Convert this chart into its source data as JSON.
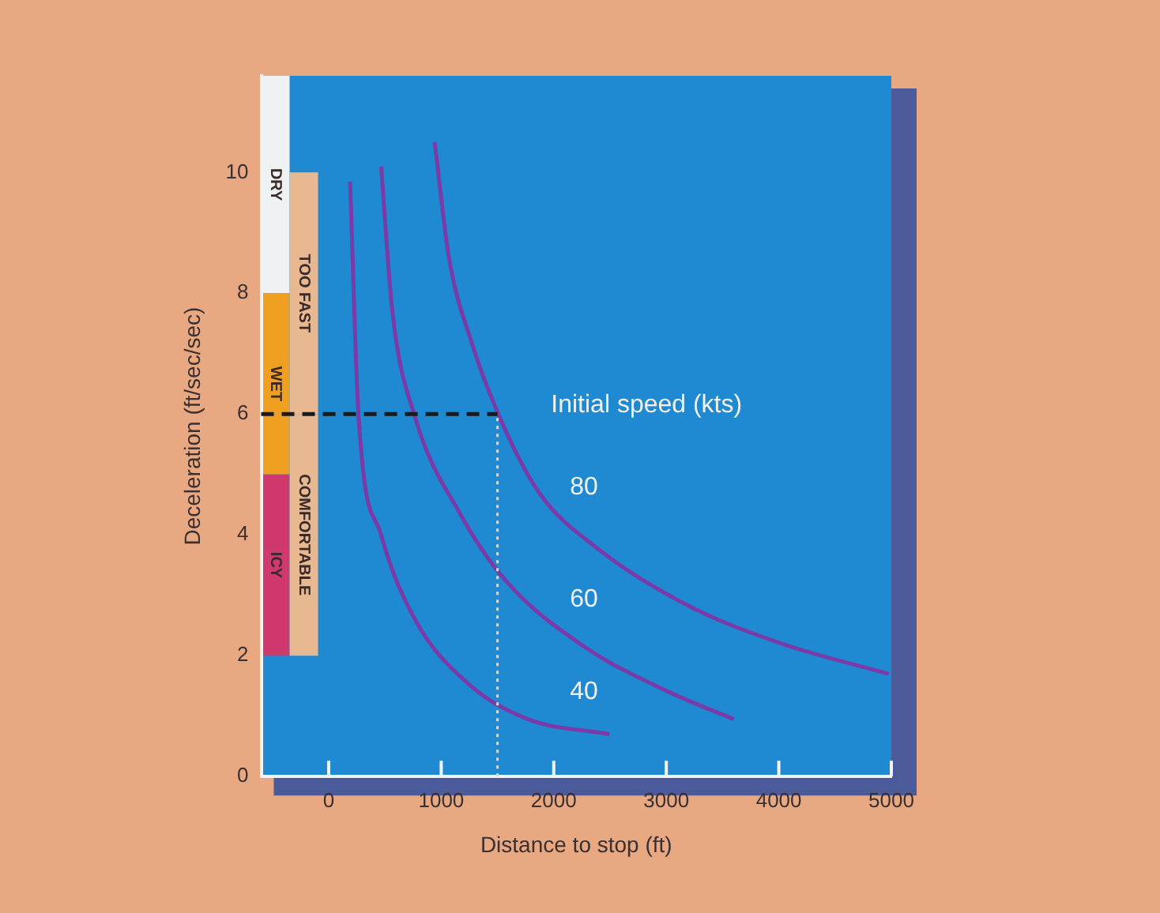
{
  "chart_data": {
    "type": "line",
    "xlabel": "Distance to stop (ft)",
    "ylabel": "Deceleration (ft/sec/sec)",
    "legend_title": "Initial speed (kts)",
    "xlim": [
      -600,
      5000
    ],
    "xticks": [
      0,
      1000,
      2000,
      3000,
      4000,
      5000
    ],
    "ylim": [
      0,
      11.6
    ],
    "yticks": [
      0,
      2,
      4,
      6,
      8,
      10
    ],
    "grid": false,
    "legend": false,
    "marker": "none",
    "line_style": "solid",
    "series": [
      {
        "name": "40",
        "color": "#7a3aa8",
        "x": [
          190,
          266,
          466,
          767,
          1263,
          1770,
          2496
        ],
        "values": [
          9.85,
          5.95,
          4,
          2.6,
          1.5,
          0.95,
          0.7
        ]
      },
      {
        "name": "60",
        "color": "#7a3aa8",
        "x": [
          466,
          566,
          767,
          1168,
          1570,
          2271,
          3023,
          3599
        ],
        "values": [
          10.1,
          7.7,
          5.95,
          4.35,
          3.25,
          2.15,
          1.4,
          0.95
        ]
      },
      {
        "name": "80",
        "color": "#7a3aa8",
        "x": [
          942,
          1068,
          1268,
          1519,
          1870,
          2371,
          3173,
          4025,
          4977
        ],
        "values": [
          10.5,
          8.6,
          7.2,
          5.95,
          4.7,
          3.8,
          2.85,
          2.2,
          1.7
        ]
      }
    ],
    "bands": [
      {
        "axis": "y",
        "from": 8,
        "to": 11.6,
        "label": "DRY",
        "color": "#eef2f2"
      },
      {
        "axis": "y",
        "from": 5,
        "to": 8,
        "label": "WET",
        "color": "#f0a020"
      },
      {
        "axis": "y",
        "from": 2,
        "to": 5,
        "label": "ICY",
        "color": "#d03870"
      },
      {
        "axis": "y",
        "from": 6,
        "to": 10,
        "label": "TOO FAST",
        "color": "#e8b890"
      },
      {
        "axis": "y",
        "from": 2,
        "to": 6,
        "label": "COMFORTABLE",
        "color": "#e8b890"
      }
    ],
    "ref_lines": [
      {
        "axis": "y",
        "value": 6,
        "color": "#1a1a1a",
        "line_style": "dashed"
      },
      {
        "axis": "x",
        "value": 1500,
        "color": "#d8d8d8",
        "line_style": "dotted"
      }
    ]
  }
}
